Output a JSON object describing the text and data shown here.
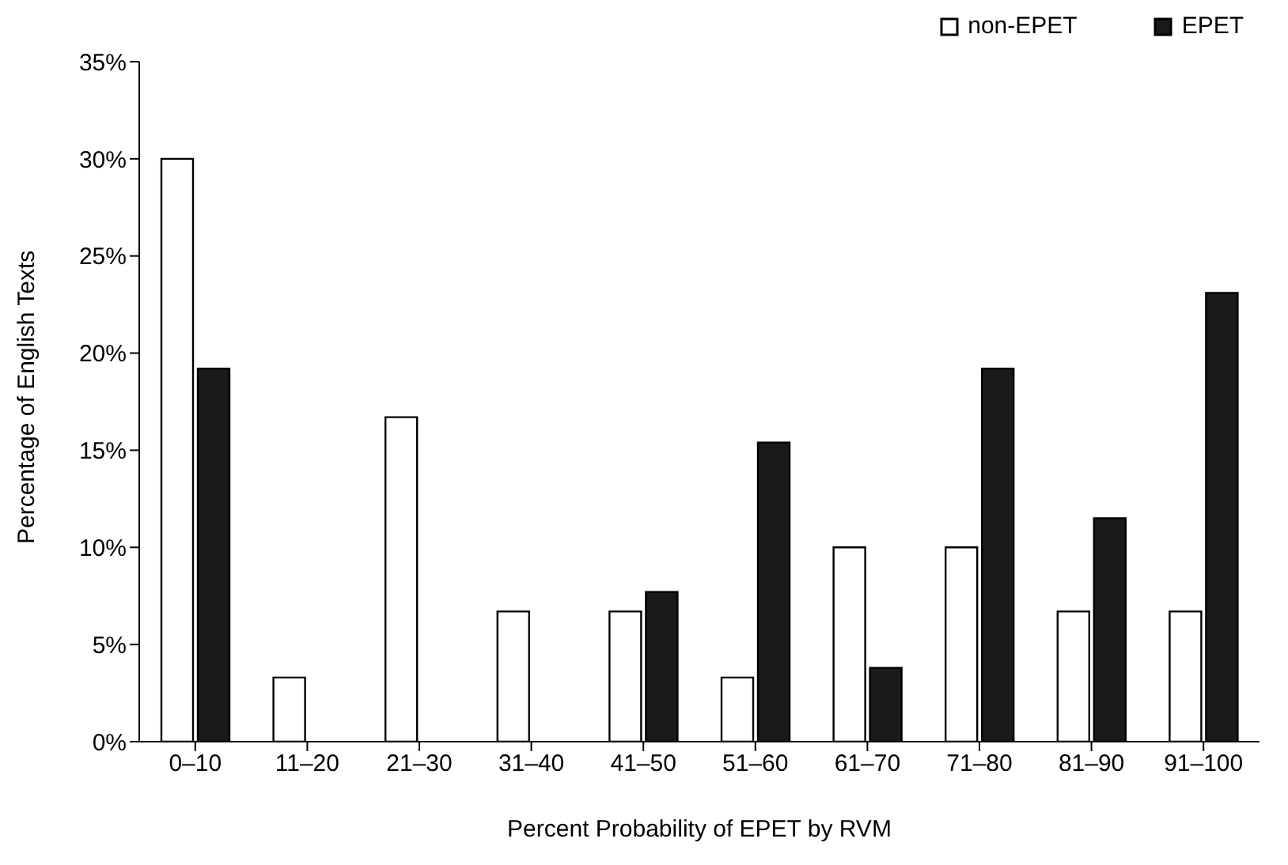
{
  "chart_data": {
    "type": "bar",
    "xlabel": "Percent Probability of EPET by RVM",
    "ylabel": "Percentage of English Texts",
    "categories": [
      "0–10",
      "11–20",
      "21–30",
      "31–40",
      "41–50",
      "51–60",
      "61–70",
      "71–80",
      "81–90",
      "91–100"
    ],
    "series": [
      {
        "name": "non-EPET",
        "color": "#ffffff",
        "values": [
          30,
          3.3,
          16.7,
          6.7,
          6.7,
          3.3,
          10,
          10,
          6.7,
          6.7
        ]
      },
      {
        "name": "EPET",
        "color": "#1a1a1a",
        "values": [
          19.2,
          0,
          0,
          0,
          7.7,
          15.4,
          3.8,
          19.2,
          11.5,
          23.1
        ]
      }
    ],
    "ylim": [
      0,
      35
    ],
    "yticks": [
      {
        "value": 0,
        "label": "0%"
      },
      {
        "value": 5,
        "label": "5%"
      },
      {
        "value": 10,
        "label": "10%"
      },
      {
        "value": 15,
        "label": "15%"
      },
      {
        "value": 20,
        "label": "20%"
      },
      {
        "value": 25,
        "label": "25%"
      },
      {
        "value": 30,
        "label": "30%"
      },
      {
        "value": 35,
        "label": "35%"
      }
    ],
    "legend": "top right"
  }
}
